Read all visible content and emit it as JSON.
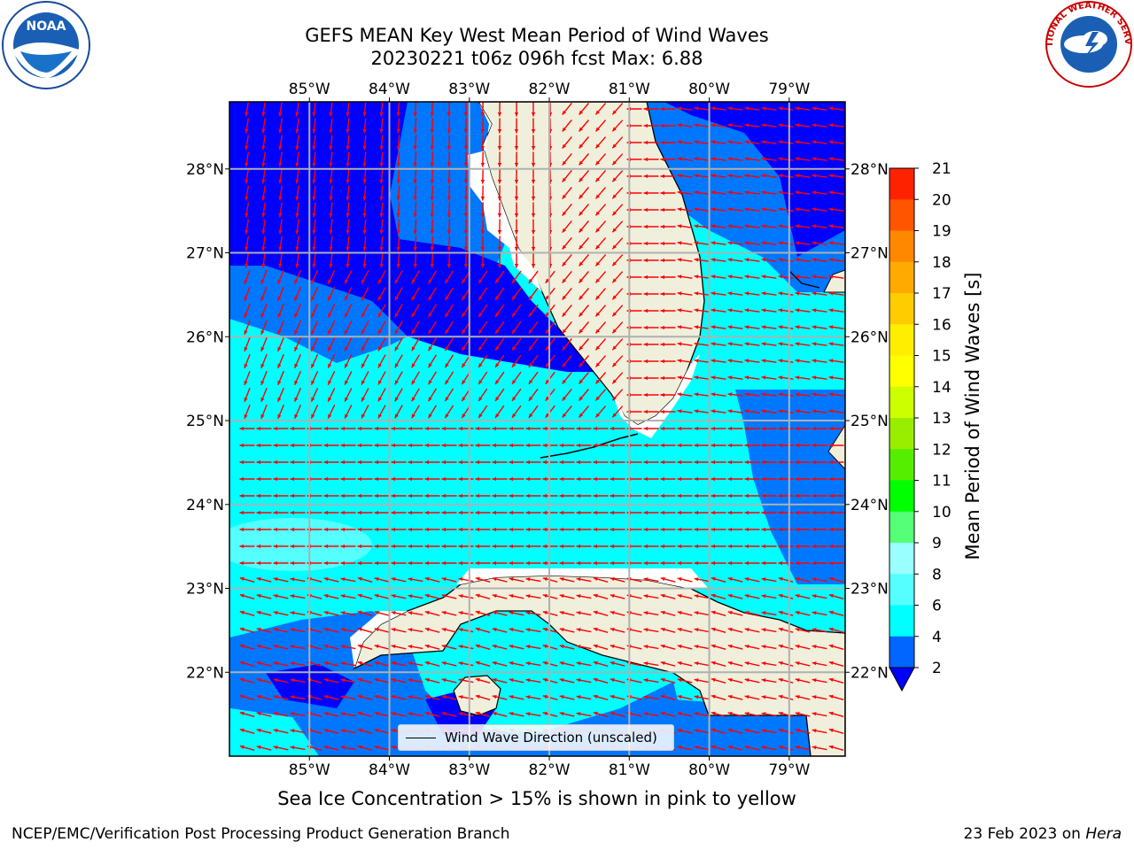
{
  "title": {
    "line1": "GEFS MEAN Key West Mean Period of Wind Waves",
    "line2": "20230221 t06z 096h fcst   Max: 6.88"
  },
  "map": {
    "lon_ticks": [
      "85°W",
      "84°W",
      "83°W",
      "82°W",
      "81°W",
      "80°W",
      "79°W"
    ],
    "lat_ticks": [
      "28°N",
      "27°N",
      "26°N",
      "25°N",
      "24°N",
      "23°N",
      "22°N"
    ],
    "extent": {
      "lon": [
        -86.0,
        -78.3
      ],
      "lat": [
        21.0,
        28.8
      ]
    },
    "fill_colors": {
      "2-4": "#0000ff",
      "4-6": "#0077ff",
      "6-8": "#00ffff",
      "8-9": "#55ffff",
      "land": "#efefdc"
    },
    "vector_color": "#ff0000"
  },
  "legend": {
    "label": "Wind Wave Direction (unscaled)"
  },
  "colorbar": {
    "label": "Mean Period of Wind Waves [s]",
    "ticks": [
      "2",
      "4",
      "6",
      "8",
      "9",
      "10",
      "11",
      "12",
      "13",
      "14",
      "15",
      "16",
      "17",
      "18",
      "19",
      "20",
      "21"
    ],
    "colors": [
      "#0066ff",
      "#00ffff",
      "#55ffff",
      "#99ffff",
      "#55ff77",
      "#00ff00",
      "#55ee00",
      "#99ee00",
      "#ccff00",
      "#ffff00",
      "#ffee00",
      "#ffcc00",
      "#ffaa00",
      "#ff8800",
      "#ff5500",
      "#ff2200"
    ],
    "under_color": "#0000ff"
  },
  "note": "Sea Ice Concentration > 15% is shown in pink to yellow",
  "footer": {
    "credit": "NCEP/EMC/Verification Post Processing Product Generation Branch",
    "date": "23 Feb 2023 on",
    "machine": "Hera"
  },
  "logos": {
    "left": "NOAA",
    "right_text": "NATIONAL WEATHER SERVICE"
  }
}
